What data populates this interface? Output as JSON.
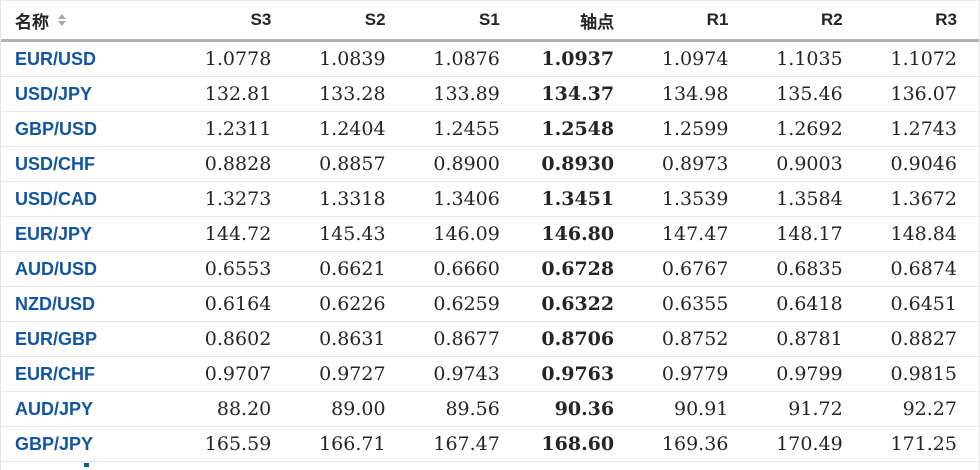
{
  "table": {
    "columns": [
      {
        "key": "name",
        "label": "名称",
        "sortable": true
      },
      {
        "key": "s3",
        "label": "S3",
        "sortable": false
      },
      {
        "key": "s2",
        "label": "S2",
        "sortable": false
      },
      {
        "key": "s1",
        "label": "S1",
        "sortable": false
      },
      {
        "key": "pivot",
        "label": "轴点",
        "sortable": false
      },
      {
        "key": "r1",
        "label": "R1",
        "sortable": false
      },
      {
        "key": "r2",
        "label": "R2",
        "sortable": false
      },
      {
        "key": "r3",
        "label": "R3",
        "sortable": false
      }
    ],
    "rows": [
      {
        "name": "EUR/USD",
        "s3": "1.0778",
        "s2": "1.0839",
        "s1": "1.0876",
        "pivot": "1.0937",
        "r1": "1.0974",
        "r2": "1.1035",
        "r3": "1.1072"
      },
      {
        "name": "USD/JPY",
        "s3": "132.81",
        "s2": "133.28",
        "s1": "133.89",
        "pivot": "134.37",
        "r1": "134.98",
        "r2": "135.46",
        "r3": "136.07"
      },
      {
        "name": "GBP/USD",
        "s3": "1.2311",
        "s2": "1.2404",
        "s1": "1.2455",
        "pivot": "1.2548",
        "r1": "1.2599",
        "r2": "1.2692",
        "r3": "1.2743"
      },
      {
        "name": "USD/CHF",
        "s3": "0.8828",
        "s2": "0.8857",
        "s1": "0.8900",
        "pivot": "0.8930",
        "r1": "0.8973",
        "r2": "0.9003",
        "r3": "0.9046"
      },
      {
        "name": "USD/CAD",
        "s3": "1.3273",
        "s2": "1.3318",
        "s1": "1.3406",
        "pivot": "1.3451",
        "r1": "1.3539",
        "r2": "1.3584",
        "r3": "1.3672"
      },
      {
        "name": "EUR/JPY",
        "s3": "144.72",
        "s2": "145.43",
        "s1": "146.09",
        "pivot": "146.80",
        "r1": "147.47",
        "r2": "148.17",
        "r3": "148.84"
      },
      {
        "name": "AUD/USD",
        "s3": "0.6553",
        "s2": "0.6621",
        "s1": "0.6660",
        "pivot": "0.6728",
        "r1": "0.6767",
        "r2": "0.6835",
        "r3": "0.6874"
      },
      {
        "name": "NZD/USD",
        "s3": "0.6164",
        "s2": "0.6226",
        "s1": "0.6259",
        "pivot": "0.6322",
        "r1": "0.6355",
        "r2": "0.6418",
        "r3": "0.6451"
      },
      {
        "name": "EUR/GBP",
        "s3": "0.8602",
        "s2": "0.8631",
        "s1": "0.8677",
        "pivot": "0.8706",
        "r1": "0.8752",
        "r2": "0.8781",
        "r3": "0.8827"
      },
      {
        "name": "EUR/CHF",
        "s3": "0.9707",
        "s2": "0.9727",
        "s1": "0.9743",
        "pivot": "0.9763",
        "r1": "0.9779",
        "r2": "0.9799",
        "r3": "0.9815"
      },
      {
        "name": "AUD/JPY",
        "s3": "88.20",
        "s2": "89.00",
        "s1": "89.56",
        "pivot": "90.36",
        "r1": "90.91",
        "r2": "91.72",
        "r3": "92.27"
      },
      {
        "name": "GBP/JPY",
        "s3": "165.59",
        "s2": "166.71",
        "s1": "167.47",
        "pivot": "168.60",
        "r1": "169.36",
        "r2": "170.49",
        "r3": "171.25"
      }
    ]
  },
  "icons": {
    "name_header_sort": "sort-arrows-icon"
  },
  "colors": {
    "link_blue": "#1256a0",
    "text_dark": "#232526",
    "header_border": "#b0b2b5",
    "row_border": "#e6e6e6",
    "sort_gray": "#a8a8a8",
    "background": "#ffffff"
  }
}
